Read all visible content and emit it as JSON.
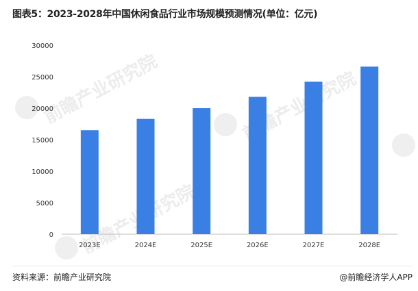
{
  "title": "图表5：2023-2028年中国休闲食品行业市场规模预测情况(单位：亿元)",
  "source": "资料来源：前瞻产业研究院",
  "brand": "@前瞻经济学人APP",
  "watermark": "前瞻产业研究院",
  "colors": {
    "bar": "#3a7fe4",
    "axis": "#bfbfbf",
    "text": "#333333"
  },
  "chart_data": {
    "type": "bar",
    "categories": [
      "2023E",
      "2024E",
      "2025E",
      "2026E",
      "2027E",
      "2028E"
    ],
    "values": [
      16500,
      18300,
      20000,
      21800,
      24200,
      26600
    ],
    "yticks": [
      0,
      5000,
      10000,
      15000,
      20000,
      25000,
      30000
    ],
    "ylim": [
      0,
      30000
    ],
    "grid": false
  }
}
